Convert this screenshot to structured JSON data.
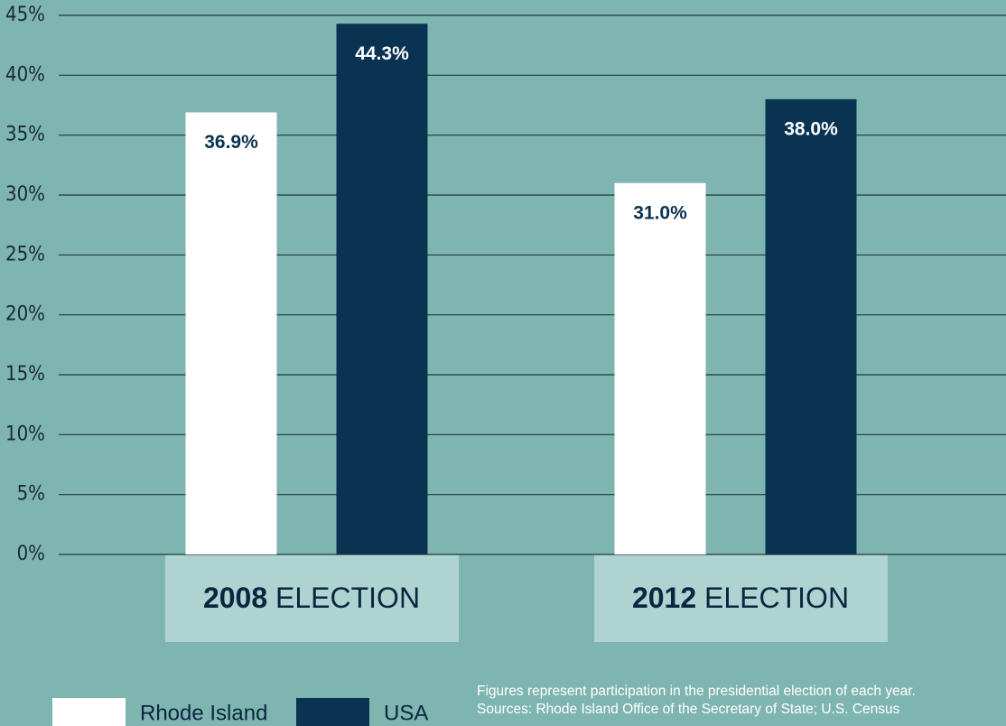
{
  "chart_data": {
    "type": "bar",
    "categories": [
      "2008 ELECTION",
      "2012 ELECTION"
    ],
    "series": [
      {
        "name": "Rhode Island",
        "color": "#ffffff",
        "values": [
          36.9,
          31.0
        ],
        "value_labels": [
          "36.9%",
          "31.0%"
        ]
      },
      {
        "name": "USA",
        "color": "#0a3352",
        "values": [
          44.3,
          38.0
        ],
        "value_labels": [
          "44.3%",
          "38.0%"
        ]
      }
    ],
    "ylim": [
      0,
      45
    ],
    "yticks": [
      {
        "value": 0,
        "label": "0%"
      },
      {
        "value": 5,
        "label": "5%"
      },
      {
        "value": 10,
        "label": "10%"
      },
      {
        "value": 15,
        "label": "15%"
      },
      {
        "value": 20,
        "label": "20%"
      },
      {
        "value": 25,
        "label": "25%"
      },
      {
        "value": 30,
        "label": "30%"
      },
      {
        "value": 35,
        "label": "35%"
      },
      {
        "value": 40,
        "label": "40%"
      },
      {
        "value": 45,
        "label": "45%"
      }
    ],
    "grid": true,
    "notes": [
      "Figures represent participation in the presidential election of each year.",
      "Sources: Rhode Island Office of the Secretary of State; U.S. Census"
    ]
  }
}
